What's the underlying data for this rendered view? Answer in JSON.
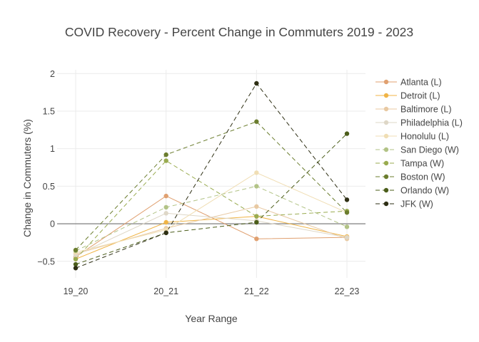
{
  "chart_data": {
    "type": "line",
    "title": "COVID Recovery - Percent Change in Commuters 2019 - 2023",
    "xlabel": "Year Range",
    "ylabel": "Change in Commuters (%)",
    "categories": [
      "19_20",
      "20_21",
      "21_22",
      "22_23"
    ],
    "ylim": [
      -0.72,
      2.05
    ],
    "yticks": [
      -0.5,
      0,
      0.5,
      1,
      1.5,
      2
    ],
    "ytick_labels": [
      "−0.5",
      "0",
      "0.5",
      "1",
      "1.5",
      "2"
    ],
    "grid": true,
    "legend_position": "right",
    "series": [
      {
        "name": "Atlanta (L)",
        "color": "#e0a070",
        "dash": "solid",
        "values": [
          -0.44,
          0.37,
          -0.2,
          -0.18
        ]
      },
      {
        "name": "Detroit (L)",
        "color": "#f0b446",
        "dash": "solid",
        "values": [
          -0.47,
          0.02,
          0.1,
          -0.17
        ]
      },
      {
        "name": "Baltimore (L)",
        "color": "#e8c9a2",
        "dash": "solid",
        "values": [
          -0.4,
          -0.06,
          0.23,
          -0.2
        ]
      },
      {
        "name": "Philadelphia (L)",
        "color": "#ded7c7",
        "dash": "solid",
        "values": [
          -0.42,
          0.14,
          0.04,
          -0.18
        ]
      },
      {
        "name": "Honolulu (L)",
        "color": "#f0deb4",
        "dash": "solid",
        "values": [
          -0.38,
          -0.08,
          0.68,
          0.15
        ]
      },
      {
        "name": "San Diego (W)",
        "color": "#b2c386",
        "dash": "dash",
        "values": [
          -0.36,
          0.22,
          0.5,
          -0.04
        ]
      },
      {
        "name": "Tampa (W)",
        "color": "#99ab4f",
        "dash": "dash",
        "values": [
          -0.47,
          0.84,
          0.1,
          0.17
        ]
      },
      {
        "name": "Boston (W)",
        "color": "#6b7d2e",
        "dash": "dash",
        "values": [
          -0.35,
          0.92,
          1.36,
          0.15
        ]
      },
      {
        "name": "Orlando (W)",
        "color": "#4b5d1a",
        "dash": "dash",
        "values": [
          -0.54,
          -0.12,
          0.02,
          1.2
        ]
      },
      {
        "name": "JFK (W)",
        "color": "#2e2f14",
        "dash": "dash",
        "values": [
          -0.59,
          -0.12,
          1.87,
          0.32
        ]
      }
    ]
  }
}
